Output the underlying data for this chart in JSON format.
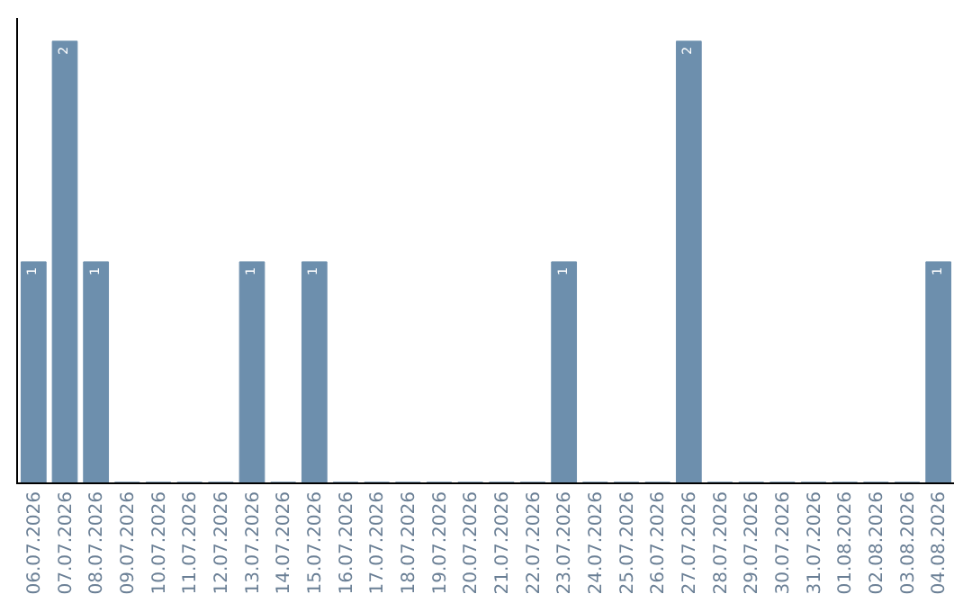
{
  "chart_data": {
    "type": "bar",
    "categories": [
      "06.07.2026",
      "07.07.2026",
      "08.07.2026",
      "09.07.2026",
      "10.07.2026",
      "11.07.2026",
      "12.07.2026",
      "13.07.2026",
      "14.07.2026",
      "15.07.2026",
      "16.07.2026",
      "17.07.2026",
      "18.07.2026",
      "19.07.2026",
      "20.07.2026",
      "21.07.2026",
      "22.07.2026",
      "23.07.2026",
      "24.07.2026",
      "25.07.2026",
      "26.07.2026",
      "27.07.2026",
      "28.07.2026",
      "29.07.2026",
      "30.07.2026",
      "31.07.2026",
      "01.08.2026",
      "02.08.2026",
      "03.08.2026",
      "04.08.2026"
    ],
    "values": [
      1,
      2,
      1,
      0,
      0,
      0,
      0,
      1,
      0,
      1,
      0,
      0,
      0,
      0,
      0,
      0,
      0,
      1,
      0,
      0,
      0,
      2,
      0,
      0,
      0,
      0,
      0,
      0,
      0,
      1
    ],
    "value_labels": [
      "1",
      "2",
      "1",
      null,
      null,
      null,
      null,
      "1",
      null,
      "1",
      null,
      null,
      null,
      null,
      null,
      null,
      null,
      "1",
      null,
      null,
      null,
      "2",
      null,
      null,
      null,
      null,
      null,
      null,
      null,
      "1"
    ],
    "color": "#6d8fad",
    "legend": false
  }
}
